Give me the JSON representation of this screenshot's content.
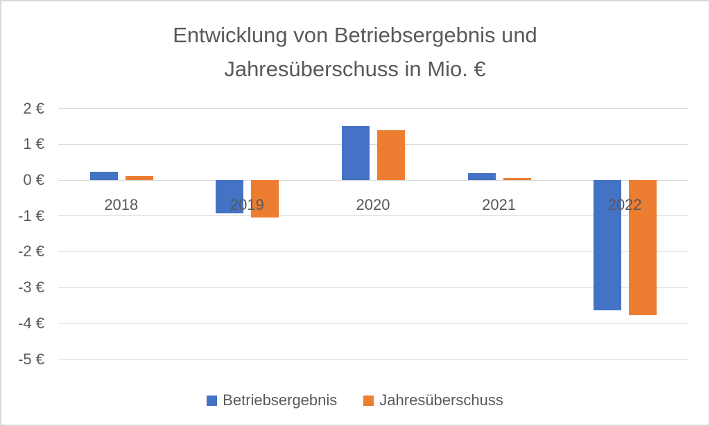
{
  "header": {
    "title_lines": [
      "Entwicklung von Betriebsergebnis und",
      "Jahresüberschuss in Mio. €"
    ]
  },
  "chart_data": {
    "type": "bar",
    "title": "Entwicklung von Betriebsergebnis und Jahresüberschuss in Mio. €",
    "categories": [
      "2018",
      "2019",
      "2020",
      "2021",
      "2022"
    ],
    "series": [
      {
        "name": "Betriebsergebnis",
        "color": "#4472C4",
        "values": [
          0.23,
          -0.93,
          1.5,
          0.19,
          -3.64
        ]
      },
      {
        "name": "Jahresüberschuss",
        "color": "#ED7D31",
        "values": [
          0.12,
          -1.05,
          1.4,
          0.06,
          -3.77
        ]
      }
    ],
    "xlabel": "",
    "ylabel": "",
    "ylim": [
      -5,
      2
    ],
    "ytick_values": [
      2,
      1,
      0,
      -1,
      -2,
      -3,
      -4,
      -5
    ],
    "ytick_labels": [
      "2 €",
      "1 €",
      "0 €",
      "-1 €",
      "-2 €",
      "-3 €",
      "-4 €",
      "-5 €"
    ],
    "grid": true,
    "legend_position": "bottom",
    "legend": [
      "Betriebsergebnis",
      "Jahresüberschuss"
    ]
  },
  "colors": {
    "series_blue": "#4472C4",
    "series_orange": "#ED7D31",
    "gridline": "#D9D9D9",
    "text": "#595959",
    "background": "#FFFFFF",
    "frame_border": "#D8D8D8"
  }
}
